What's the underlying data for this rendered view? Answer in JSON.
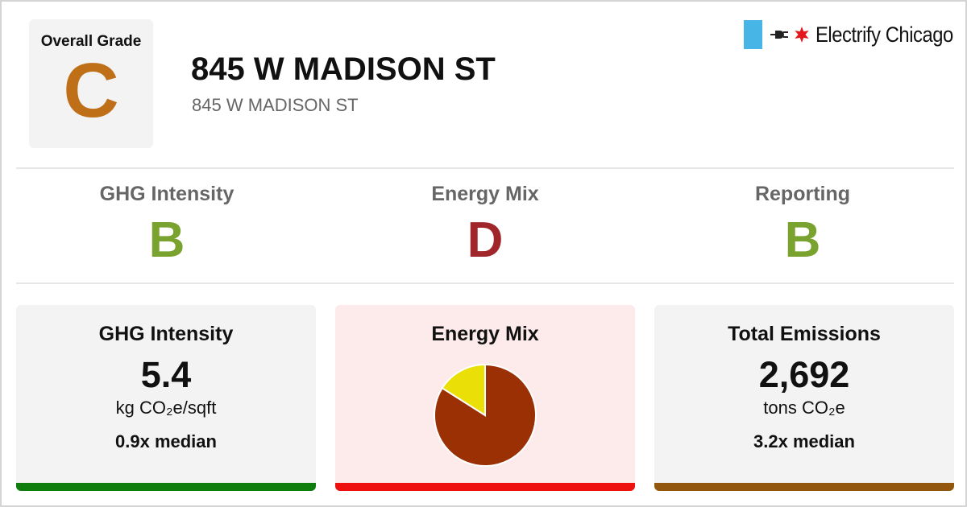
{
  "colors": {
    "grade_c": "#bf6f17",
    "grade_b": "#79a22f",
    "grade_d": "#a0262b",
    "bar_ghg": "#0e7d0e",
    "bar_mix": "#ee0f0f",
    "bar_total": "#92560c",
    "pie_main": "#9a3003",
    "pie_slice": "#eadf07",
    "flag_blue": "#48b5e7",
    "star_red": "#e4171d"
  },
  "header": {
    "overall_label": "Overall Grade",
    "overall_grade": "C",
    "title": "845 W MADISON ST",
    "subtitle": "845 W MADISON ST",
    "logo_text": "Electrify Chicago",
    "logo_icons": [
      "chicago-flag-icon",
      "plug-icon",
      "star-icon"
    ]
  },
  "grades": [
    {
      "label": "GHG Intensity",
      "grade": "B"
    },
    {
      "label": "Energy Mix",
      "grade": "D"
    },
    {
      "label": "Reporting",
      "grade": "B"
    }
  ],
  "cards": {
    "ghg": {
      "title": "GHG Intensity",
      "value": "5.4",
      "unit": "kg CO₂e/sqft",
      "median": "0.9x median"
    },
    "mix": {
      "title": "Energy Mix"
    },
    "total": {
      "title": "Total Emissions",
      "value": "2,692",
      "unit": "tons CO₂e",
      "median": "3.2x median"
    }
  },
  "chart_data": {
    "type": "pie",
    "slices": [
      {
        "fraction": 0.84,
        "color": "#9a3003"
      },
      {
        "fraction": 0.16,
        "color": "#eadf07"
      }
    ]
  }
}
